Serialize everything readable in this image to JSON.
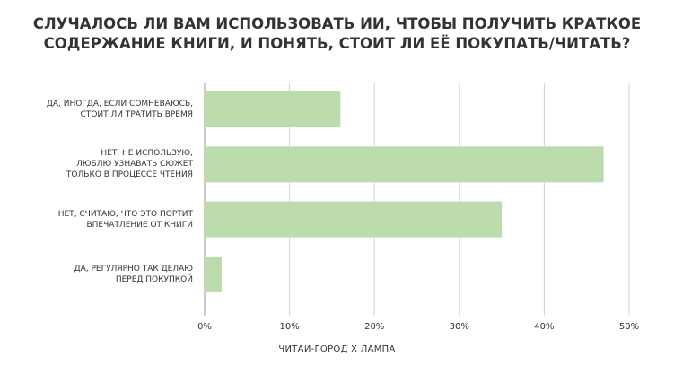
{
  "chart_data": {
    "type": "barh",
    "title": "СЛУЧАЛОСЬ ЛИ ВАМ ИСПОЛЬЗОВАТЬ ИИ, ЧТОБЫ ПОЛУЧИТЬ КРАТКОЕ\nСОДЕРЖАНИЕ КНИГИ, И ПОНЯТЬ, СТОИТ ЛИ ЕЁ ПОКУПАТЬ/ЧИТАТЬ?",
    "categories": [
      "ДА, ИНОГДА, ЕСЛИ СОМНЕВАЮСЬ,\nСТОИТ ЛИ ТРАТИТЬ ВРЕМЯ",
      "НЕТ, НЕ ИСПОЛЬЗУЮ,\nЛЮБЛЮ УЗНАВАТЬ СЮЖЕТ\nТОЛЬКО В ПРОЦЕССЕ ЧТЕНИЯ",
      "НЕТ, СЧИТАЮ, ЧТО ЭТО ПОРТИТ\nВПЕЧАТЛЕНИЕ ОТ КНИГИ",
      "ДА, РЕГУЛЯРНО ТАК ДЕЛАЮ\nПЕРЕД ПОКУПКОЙ"
    ],
    "values": [
      16,
      47,
      35,
      2
    ],
    "color": "#bcdcae",
    "xlim": [
      0,
      50
    ],
    "xticks": [
      {
        "value": 0,
        "label": "0%"
      },
      {
        "value": 10,
        "label": "10%"
      },
      {
        "value": 20,
        "label": "20%"
      },
      {
        "value": 30,
        "label": "30%"
      },
      {
        "value": 40,
        "label": "40%"
      },
      {
        "value": 50,
        "label": "50%"
      }
    ],
    "grid": true,
    "source": "ЧИТАЙ-ГОРОД Х ЛАМПА"
  }
}
